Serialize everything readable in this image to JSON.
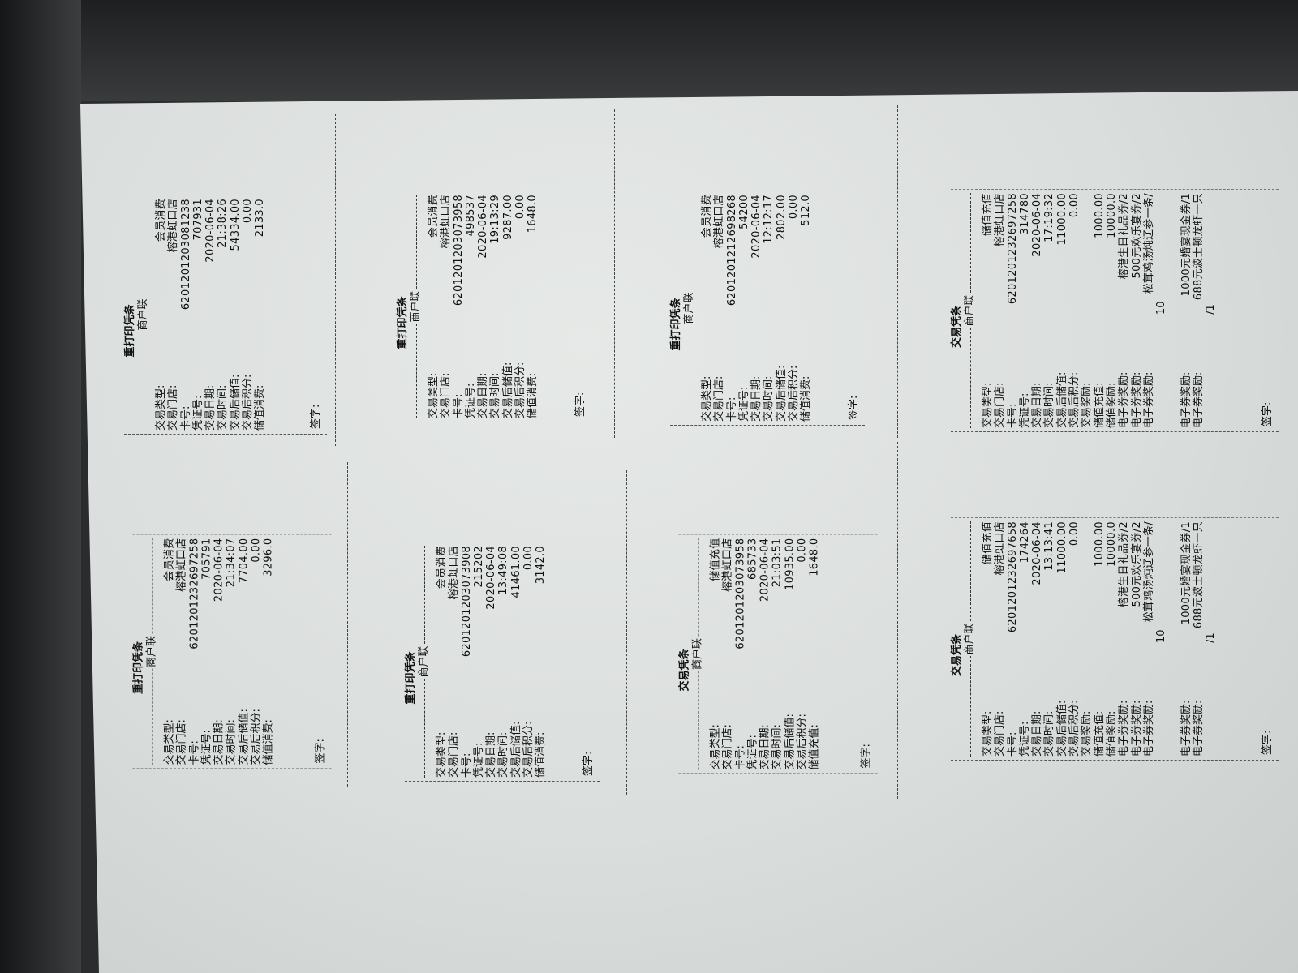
{
  "receipts": [
    {
      "title": "重打印凭条",
      "subtitle": "商户联",
      "sign": "签字:",
      "rows": [
        {
          "label": "交易类型:",
          "value": "会员消费"
        },
        {
          "label": "交易门店:",
          "value": "榕港虹口店"
        },
        {
          "label": "卡号:",
          "value": "6201201203081238"
        },
        {
          "label": "凭证号:",
          "value": "707931"
        },
        {
          "label": "交易日期:",
          "value": "2020-06-04"
        },
        {
          "label": "交易时间:",
          "value": "21:38:26"
        },
        {
          "label": "交易后储值:",
          "value": "54334.00"
        },
        {
          "label": "交易后积分:",
          "value": "0.00"
        },
        {
          "label": "储值消费:",
          "value": "2133.0"
        }
      ]
    },
    {
      "title": "重打印凭条",
      "subtitle": "商户联",
      "sign": "签字:",
      "rows": [
        {
          "label": "交易类型:",
          "value": "会员消费"
        },
        {
          "label": "交易门店:",
          "value": "榕港虹口店"
        },
        {
          "label": "卡号:",
          "value": "6201201203073958"
        },
        {
          "label": "凭证号:",
          "value": "498537"
        },
        {
          "label": "交易日期:",
          "value": "2020-06-04"
        },
        {
          "label": "交易时间:",
          "value": "19:13:29"
        },
        {
          "label": "交易后储值:",
          "value": "9287.00"
        },
        {
          "label": "交易后积分:",
          "value": "0.00"
        },
        {
          "label": "储值消费:",
          "value": "1648.0"
        }
      ]
    },
    {
      "title": "重打印凭条",
      "subtitle": "商户联",
      "sign": "签字:",
      "rows": [
        {
          "label": "交易类型:",
          "value": "会员消费"
        },
        {
          "label": "交易门店:",
          "value": "榕港虹口店"
        },
        {
          "label": "卡号:",
          "value": "6201201212698268"
        },
        {
          "label": "凭证号:",
          "value": "54200"
        },
        {
          "label": "交易日期:",
          "value": "2020-06-04"
        },
        {
          "label": "交易时间:",
          "value": "12:12:17"
        },
        {
          "label": "交易后储值:",
          "value": "2802.00"
        },
        {
          "label": "交易后积分:",
          "value": "0.00"
        },
        {
          "label": "储值消费:",
          "value": "512.0"
        }
      ]
    },
    {
      "title": "交易凭条",
      "subtitle": "商户联",
      "sign": "签字:",
      "rows": [
        {
          "label": "交易类型:",
          "value": "储值充值"
        },
        {
          "label": "交易门店:",
          "value": "榕港虹口店"
        },
        {
          "label": "卡号:",
          "value": "6201201232697258"
        },
        {
          "label": "凭证号:",
          "value": "314780"
        },
        {
          "label": "交易日期:",
          "value": "2020-06-04"
        },
        {
          "label": "交易时间:",
          "value": "17:19:32"
        },
        {
          "label": "交易后储值:",
          "value": "11000.00"
        },
        {
          "label": "交易后积分:",
          "value": "0.00"
        },
        {
          "label": "交易奖励:",
          "value": ""
        },
        {
          "label": "储值充值:",
          "value": "1000.00"
        },
        {
          "label": "储值奖励:",
          "value": "10000.0"
        },
        {
          "label": "电子券奖励:",
          "value": "榕港生日礼品券/2"
        },
        {
          "label": "电子券奖励:",
          "value": "500元欢乐宴券/2"
        },
        {
          "label": "电子券奖励:",
          "value": "松茸鸡汤炖辽参一条/",
          "cont": "10"
        },
        {
          "gap": true
        },
        {
          "label": "电子券奖励:",
          "value": "1000元婚宴现金券/1"
        },
        {
          "label": "电子券奖励:",
          "value": "688元波士顿龙虾一只",
          "cont": "/1"
        }
      ]
    },
    {
      "title": "重打印凭条",
      "subtitle": "商户联",
      "sign": "签字:",
      "rows": [
        {
          "label": "交易类型:",
          "value": "会员消费"
        },
        {
          "label": "交易门店:",
          "value": "榕港虹口店"
        },
        {
          "label": "卡号:",
          "value": "6201201232697258"
        },
        {
          "label": "凭证号:",
          "value": "705791"
        },
        {
          "label": "交易日期:",
          "value": "2020-06-04"
        },
        {
          "label": "交易时间:",
          "value": "21:34:07"
        },
        {
          "label": "交易后储值:",
          "value": "7704.00"
        },
        {
          "label": "交易后积分:",
          "value": "0.00"
        },
        {
          "label": "储值消费:",
          "value": "3296.0"
        }
      ]
    },
    {
      "title": "重打印凭条",
      "subtitle": "商户联",
      "sign": "签字:",
      "rows": [
        {
          "label": "交易类型:",
          "value": "会员消费"
        },
        {
          "label": "交易门店:",
          "value": "榕港虹口店"
        },
        {
          "label": "卡号:",
          "value": "6201201203073908"
        },
        {
          "label": "凭证号:",
          "value": "215202"
        },
        {
          "label": "交易日期:",
          "value": "2020-06-04"
        },
        {
          "label": "交易时间:",
          "value": "13:49:08"
        },
        {
          "label": "交易后储值:",
          "value": "41461.00"
        },
        {
          "label": "交易后积分:",
          "value": "0.00"
        },
        {
          "label": "储值消费:",
          "value": "3142.0"
        }
      ]
    },
    {
      "title": "交易凭条",
      "subtitle": "商户联",
      "sign": "签字:",
      "rows": [
        {
          "label": "交易类型:",
          "value": "储值充值"
        },
        {
          "label": "交易门店:",
          "value": "榕港虹口店"
        },
        {
          "label": "卡号:",
          "value": "6201201203073958"
        },
        {
          "label": "凭证号:",
          "value": "685733"
        },
        {
          "label": "交易日期:",
          "value": "2020-06-04"
        },
        {
          "label": "交易时间:",
          "value": "21:03:51"
        },
        {
          "label": "交易后储值:",
          "value": "10935.00"
        },
        {
          "label": "交易后积分:",
          "value": "0.00"
        },
        {
          "label": "储值充值:",
          "value": "1648.0"
        }
      ]
    },
    {
      "title": "交易凭条",
      "subtitle": "商户联",
      "sign": "签字:",
      "rows": [
        {
          "label": "交易类型:",
          "value": "储值充值"
        },
        {
          "label": "交易门店:",
          "value": "榕港虹口店"
        },
        {
          "label": "卡号:",
          "value": "6201201232697658"
        },
        {
          "label": "凭证号:",
          "value": "174264"
        },
        {
          "label": "交易日期:",
          "value": "2020-06-04"
        },
        {
          "label": "交易时间:",
          "value": "13:13:41"
        },
        {
          "label": "交易后储值:",
          "value": "11000.00"
        },
        {
          "label": "交易后积分:",
          "value": "0.00"
        },
        {
          "label": "交易奖励:",
          "value": ""
        },
        {
          "label": "储值充值:",
          "value": "1000.00"
        },
        {
          "label": "储值奖励:",
          "value": "10000.0"
        },
        {
          "label": "电子券奖励:",
          "value": "榕港生日礼品券/2"
        },
        {
          "label": "电子券奖励:",
          "value": "500元欢乐宴券/2"
        },
        {
          "label": "电子券奖励:",
          "value": "松茸鸡汤炖辽参一条/",
          "cont": "10"
        },
        {
          "gap": true
        },
        {
          "label": "电子券奖励:",
          "value": "1000元婚宴现金券/1"
        },
        {
          "label": "电子券奖励:",
          "value": "688元波士顿龙虾一只",
          "cont": "/1"
        }
      ]
    }
  ]
}
